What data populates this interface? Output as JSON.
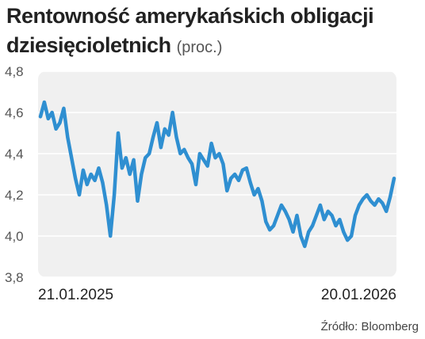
{
  "title": "Rentowność amerykańskich obligacji dziesięcioletnich",
  "unit": "(proc.)",
  "source": "Źródło: Bloomberg",
  "colors": {
    "line": "#2f8fd1",
    "plot_bg": "#f0f0f0",
    "text": "#222222"
  },
  "chart_data": {
    "type": "line",
    "title": "Rentowność amerykańskich obligacji dziesięcioletnich (proc.)",
    "xlabel": "",
    "ylabel": "",
    "ylim": [
      3.8,
      4.8
    ],
    "y_ticks": [
      3.8,
      4.0,
      4.2,
      4.4,
      4.6,
      4.8
    ],
    "y_tick_labels": [
      "3,8",
      "4,0",
      "4,2",
      "4,4",
      "4,6",
      "4,8"
    ],
    "x_tick_labels": [
      {
        "label": "21.01.2025",
        "x": "2025-01-21"
      },
      {
        "label": "20.01.2026",
        "x": "2026-01-20"
      }
    ],
    "grid": true,
    "series": [
      {
        "x": [
          "2025-01-21",
          "2025-01-25",
          "2025-01-29",
          "2025-02-02",
          "2025-02-06",
          "2025-02-10",
          "2025-02-14",
          "2025-02-18",
          "2025-02-22",
          "2025-02-26",
          "2025-03-02",
          "2025-03-06",
          "2025-03-10",
          "2025-03-14",
          "2025-03-18",
          "2025-03-22",
          "2025-03-26",
          "2025-03-30",
          "2025-04-03",
          "2025-04-07",
          "2025-04-11",
          "2025-04-15",
          "2025-04-19",
          "2025-04-23",
          "2025-04-27",
          "2025-05-01",
          "2025-05-05",
          "2025-05-09",
          "2025-05-13",
          "2025-05-17",
          "2025-05-21",
          "2025-05-25",
          "2025-05-29",
          "2025-06-02",
          "2025-06-06",
          "2025-06-10",
          "2025-06-14",
          "2025-06-18",
          "2025-06-22",
          "2025-06-26",
          "2025-06-30",
          "2025-07-04",
          "2025-07-08",
          "2025-07-12",
          "2025-07-16",
          "2025-07-20",
          "2025-07-24",
          "2025-07-28",
          "2025-08-01",
          "2025-08-05",
          "2025-08-09",
          "2025-08-13",
          "2025-08-17",
          "2025-08-21",
          "2025-08-25",
          "2025-08-29",
          "2025-09-02",
          "2025-09-06",
          "2025-09-10",
          "2025-09-14",
          "2025-09-18",
          "2025-09-22",
          "2025-09-26",
          "2025-09-30",
          "2025-10-04",
          "2025-10-08",
          "2025-10-12",
          "2025-10-16",
          "2025-10-20",
          "2025-10-24",
          "2025-10-28",
          "2025-11-01",
          "2025-11-05",
          "2025-11-09",
          "2025-11-13",
          "2025-11-17",
          "2025-11-21",
          "2025-11-25",
          "2025-11-29",
          "2025-12-03",
          "2025-12-07",
          "2025-12-11",
          "2025-12-15",
          "2025-12-19",
          "2025-12-23",
          "2025-12-27",
          "2025-12-31",
          "2026-01-04",
          "2026-01-08",
          "2026-01-12",
          "2026-01-16",
          "2026-01-20"
        ],
        "values": [
          4.58,
          4.65,
          4.57,
          4.6,
          4.52,
          4.55,
          4.62,
          4.48,
          4.38,
          4.28,
          4.2,
          4.32,
          4.25,
          4.3,
          4.27,
          4.33,
          4.26,
          4.15,
          4.0,
          4.2,
          4.5,
          4.33,
          4.38,
          4.3,
          4.37,
          4.17,
          4.3,
          4.38,
          4.4,
          4.48,
          4.55,
          4.43,
          4.52,
          4.49,
          4.6,
          4.48,
          4.4,
          4.42,
          4.38,
          4.35,
          4.25,
          4.4,
          4.37,
          4.34,
          4.45,
          4.38,
          4.4,
          4.35,
          4.22,
          4.28,
          4.3,
          4.27,
          4.32,
          4.33,
          4.26,
          4.2,
          4.23,
          4.17,
          4.07,
          4.03,
          4.05,
          4.1,
          4.15,
          4.12,
          4.08,
          4.02,
          4.1,
          4.0,
          3.95,
          4.02,
          4.05,
          4.1,
          4.15,
          4.08,
          4.12,
          4.1,
          4.05,
          4.08,
          4.02,
          3.98,
          4.0,
          4.1,
          4.15,
          4.18,
          4.2,
          4.17,
          4.15,
          4.18,
          4.16,
          4.12,
          4.19,
          4.28
        ]
      }
    ]
  }
}
